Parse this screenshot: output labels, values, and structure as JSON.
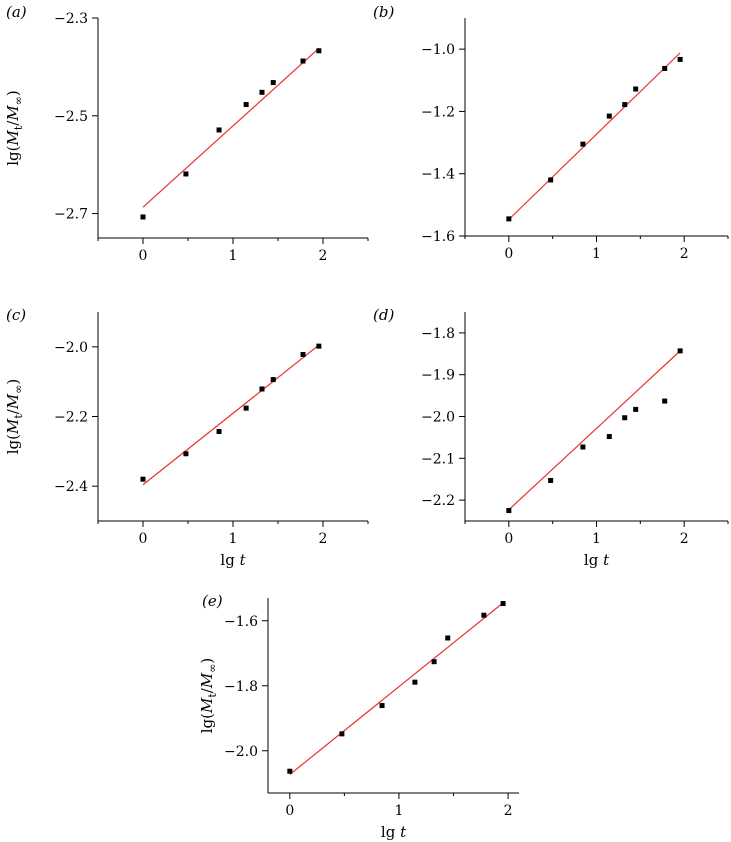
{
  "chart_data": [
    {
      "type": "scatter",
      "panel_label": "(a)",
      "ylabel_parts": [
        "lg(",
        "M",
        "t",
        "/",
        "M",
        "∞",
        ")"
      ],
      "xlabel_parts": [],
      "xlim": [
        -0.5,
        2.5
      ],
      "ylim": [
        -2.75,
        -2.3
      ],
      "xticks": [
        0,
        1,
        2
      ],
      "xtick_labels": [
        "0",
        "1",
        "2"
      ],
      "yticks": [
        -2.7,
        -2.5,
        -2.3
      ],
      "ytick_labels": [
        "−2.7",
        "−2.5",
        "−2.3"
      ],
      "x": [
        0,
        0.477,
        0.845,
        1.146,
        1.322,
        1.447,
        1.778,
        1.954
      ],
      "y": [
        -2.707,
        -2.619,
        -2.529,
        -2.477,
        -2.452,
        -2.432,
        -2.388,
        -2.367
      ],
      "fit_line": {
        "x": [
          0,
          1.954
        ],
        "y": [
          -2.687,
          -2.362
        ],
        "color": "#e8312f"
      },
      "marker_color": "#000000"
    },
    {
      "type": "scatter",
      "panel_label": "(b)",
      "ylabel_parts": [],
      "xlabel_parts": [],
      "xlim": [
        -0.5,
        2.5
      ],
      "ylim": [
        -1.6,
        -0.9
      ],
      "xticks": [
        0,
        1,
        2
      ],
      "xtick_labels": [
        "0",
        "1",
        "2"
      ],
      "yticks": [
        -1.6,
        -1.4,
        -1.2,
        -1.0
      ],
      "ytick_labels": [
        "−1.6",
        "−1.4",
        "−1.2",
        "−1.0"
      ],
      "x": [
        0,
        0.477,
        0.845,
        1.146,
        1.322,
        1.447,
        1.778,
        1.954
      ],
      "y": [
        -1.545,
        -1.42,
        -1.305,
        -1.215,
        -1.178,
        -1.128,
        -1.062,
        -1.033
      ],
      "fit_line": {
        "x": [
          0,
          1.954
        ],
        "y": [
          -1.547,
          -1.012
        ],
        "color": "#e8312f"
      },
      "marker_color": "#000000"
    },
    {
      "type": "scatter",
      "panel_label": "(c)",
      "ylabel_parts": [
        "lg(",
        "M",
        "t",
        "/",
        "M",
        "∞",
        ")"
      ],
      "xlabel_parts": [
        "lg ",
        "t"
      ],
      "xlim": [
        -0.5,
        2.5
      ],
      "ylim": [
        -2.5,
        -1.9
      ],
      "xticks": [
        0,
        1,
        2
      ],
      "xtick_labels": [
        "0",
        "1",
        "2"
      ],
      "yticks": [
        -2.4,
        -2.2,
        -2.0
      ],
      "ytick_labels": [
        "−2.4",
        "−2.2",
        "−2.0"
      ],
      "x": [
        0,
        0.477,
        0.845,
        1.146,
        1.322,
        1.447,
        1.778,
        1.954
      ],
      "y": [
        -2.38,
        -2.307,
        -2.243,
        -2.176,
        -2.121,
        -2.094,
        -2.022,
        -1.998
      ],
      "fit_line": {
        "x": [
          0,
          1.954
        ],
        "y": [
          -2.396,
          -1.995
        ],
        "color": "#e8312f"
      },
      "marker_color": "#000000"
    },
    {
      "type": "scatter",
      "panel_label": "(d)",
      "ylabel_parts": [],
      "xlabel_parts": [
        "lg ",
        "t"
      ],
      "xlim": [
        -0.5,
        2.5
      ],
      "ylim": [
        -2.25,
        -1.75
      ],
      "xticks": [
        0,
        1,
        2
      ],
      "xtick_labels": [
        "0",
        "1",
        "2"
      ],
      "yticks": [
        -2.2,
        -2.1,
        -2.0,
        -1.9,
        -1.8
      ],
      "ytick_labels": [
        "−2.2",
        "−2.1",
        "−2.0",
        "−1.9",
        "−1.8"
      ],
      "x": [
        0,
        0.477,
        0.845,
        1.146,
        1.322,
        1.447,
        1.778,
        1.954
      ],
      "y": [
        -2.225,
        -2.153,
        -2.073,
        -2.048,
        -2.003,
        -1.983,
        -1.963,
        -1.843
      ],
      "fit_line": {
        "x": [
          0,
          1.954
        ],
        "y": [
          -2.223,
          -1.843
        ],
        "color": "#e8312f"
      },
      "marker_color": "#000000"
    },
    {
      "type": "scatter",
      "panel_label": "(e)",
      "ylabel_parts": [
        "lg(",
        "M",
        "t",
        "/",
        "M",
        "∞",
        ")"
      ],
      "xlabel_parts": [
        "lg ",
        "t"
      ],
      "xlim": [
        -0.2,
        2.1
      ],
      "ylim": [
        -2.13,
        -1.53
      ],
      "xticks": [
        0,
        1,
        2
      ],
      "xtick_labels": [
        "0",
        "1",
        "2"
      ],
      "yticks": [
        -2.0,
        -1.8,
        -1.6
      ],
      "ytick_labels": [
        "−2.0",
        "−1.8",
        "−1.6"
      ],
      "x": [
        0,
        0.477,
        0.845,
        1.146,
        1.322,
        1.447,
        1.778,
        1.954
      ],
      "y": [
        -2.063,
        -1.948,
        -1.861,
        -1.789,
        -1.726,
        -1.653,
        -1.583,
        -1.547
      ],
      "fit_line": {
        "x": [
          0,
          1.954
        ],
        "y": [
          -2.073,
          -1.545
        ],
        "color": "#e8312f"
      },
      "marker_color": "#000000"
    }
  ]
}
